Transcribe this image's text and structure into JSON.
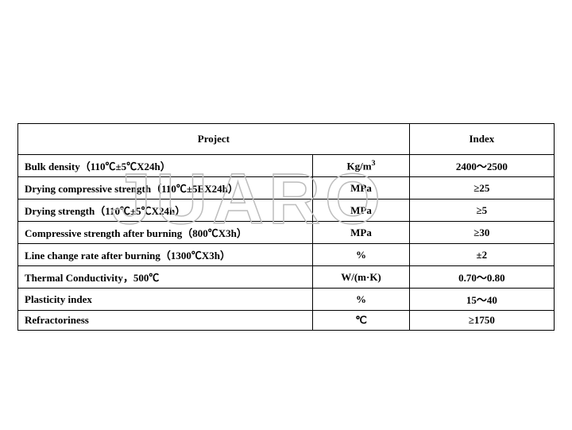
{
  "watermark": "JUARO",
  "table": {
    "header": {
      "project": "Project",
      "index": "Index"
    },
    "col_widths": [
      "55%",
      "18%",
      "27%"
    ],
    "rows": [
      {
        "property": "Bulk density（110℃±5℃X24h）",
        "unit_html": "Kg/m<sup>3</sup>",
        "index": "2400～2500"
      },
      {
        "property": "Drying compressive strength（110℃±5EX24h）",
        "unit_html": "MPa",
        "index": "≥25"
      },
      {
        "property": "Drying strength（110℃±5℃X24h）",
        "unit_html": "MPa",
        "index": "≥5"
      },
      {
        "property": "Compressive strength after burning（800℃X3h）",
        "unit_html": "MPa",
        "index": "≥30"
      },
      {
        "property": "Line change rate after burning（1300℃X3h）",
        "unit_html": "%",
        "index": "±2"
      },
      {
        "property": "Thermal Conductivity，500℃",
        "unit_html": "W/(m·K)",
        "index": "0.70～0.80"
      },
      {
        "property": "Plasticity index",
        "unit_html": "%",
        "index": "15～40"
      },
      {
        "property": "Refractoriness",
        "unit_html": "℃",
        "index": "≥1750"
      }
    ]
  }
}
